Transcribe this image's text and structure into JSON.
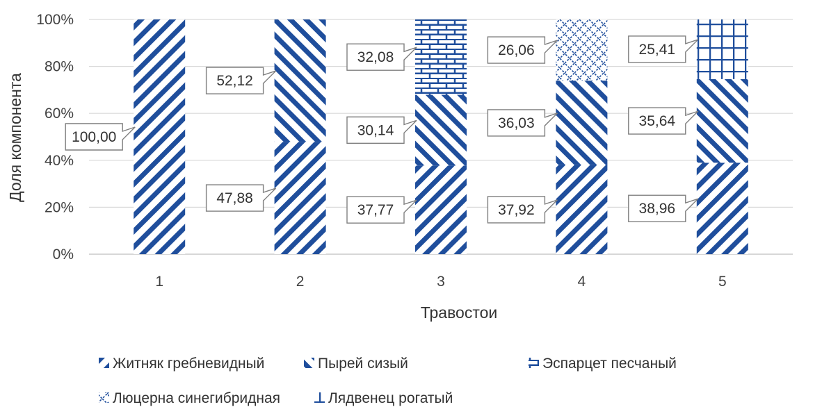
{
  "chart_data": {
    "type": "bar",
    "stacked": "percent",
    "categories": [
      "1",
      "2",
      "3",
      "4",
      "5"
    ],
    "series": [
      {
        "name": "Житняк гребневидный",
        "values": [
          100.0,
          47.88,
          37.77,
          37.92,
          38.96
        ],
        "pattern": "diag-down",
        "color": "#1f4e9c"
      },
      {
        "name": "Пырей сизый",
        "values": [
          0,
          52.12,
          30.14,
          36.03,
          35.64
        ],
        "pattern": "diag-up",
        "color": "#1f4e9c"
      },
      {
        "name": "Эспарцет песчаный",
        "values": [
          0,
          0,
          32.08,
          0,
          0
        ],
        "pattern": "brick",
        "color": "#1f4e9c"
      },
      {
        "name": "Люцерна синегибридная",
        "values": [
          0,
          0,
          0,
          26.06,
          0
        ],
        "pattern": "diamond",
        "color": "#1f4e9c"
      },
      {
        "name": "Лядвенец рогатый",
        "values": [
          0,
          0,
          0,
          0,
          25.41
        ],
        "pattern": "grid",
        "color": "#1f4e9c"
      }
    ],
    "data_labels": [
      [
        "100,00",
        "47,88",
        "37,77",
        "37,92",
        "38,96"
      ],
      [
        "",
        "52,12",
        "30,14",
        "36,03",
        "35,64"
      ],
      [
        "",
        "",
        "32,08",
        "",
        ""
      ],
      [
        "",
        "",
        "",
        "26,06",
        ""
      ],
      [
        "",
        "",
        "",
        "",
        "25,41"
      ]
    ],
    "y_ticks": [
      "0%",
      "20%",
      "40%",
      "60%",
      "80%",
      "100%"
    ],
    "ylim": [
      0,
      100
    ],
    "xlabel": "Травостои",
    "ylabel": "Доля компонента",
    "grid": true,
    "legend": "bottom"
  }
}
